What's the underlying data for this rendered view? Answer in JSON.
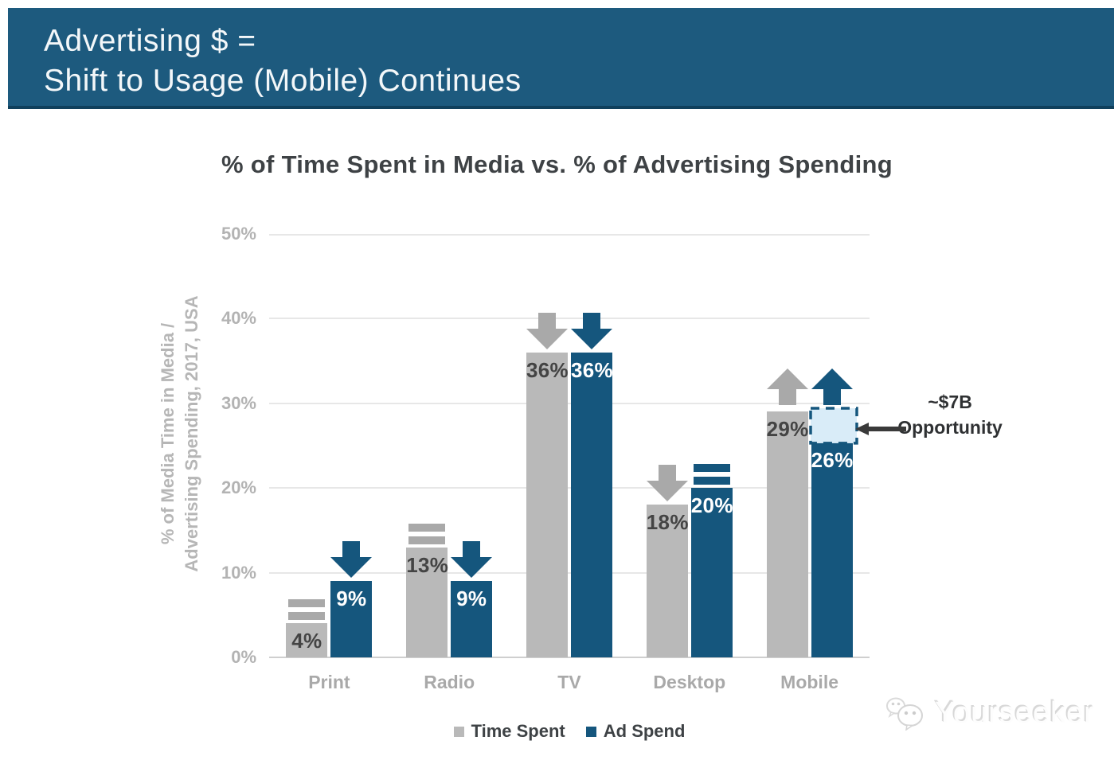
{
  "header": {
    "line1": "Advertising $ =",
    "line2": "Shift to Usage (Mobile) Continues",
    "bg_color": "#1d5a7e"
  },
  "chart_data": {
    "type": "bar",
    "title": "% of Time Spent in Media vs. % of Advertising Spending",
    "ylabel": "% of Media Time in Media / Advertising Spending, 2017, USA",
    "ylabel_lines": [
      "% of Media Time in Media /",
      "Advertising Spending, 2017, USA"
    ],
    "categories": [
      "Print",
      "Radio",
      "TV",
      "Desktop",
      "Mobile"
    ],
    "series": [
      {
        "name": "Time Spent",
        "color": "#b9b9b9",
        "trend_color": "#a9a9a9",
        "values": [
          4,
          13,
          36,
          18,
          29
        ],
        "trends": [
          "flat",
          "flat",
          "down",
          "down",
          "up"
        ]
      },
      {
        "name": "Ad Spend",
        "color": "#15567d",
        "trend_color": "#15567d",
        "values": [
          9,
          9,
          36,
          20,
          26
        ],
        "trends": [
          "down",
          "down",
          "down",
          "flat",
          "up"
        ]
      }
    ],
    "value_suffix": "%",
    "yticks": [
      "0%",
      "10%",
      "20%",
      "30%",
      "40%",
      "50%"
    ],
    "ytick_values": [
      0,
      10,
      20,
      30,
      40,
      50
    ],
    "ylim": [
      0,
      50
    ],
    "grid": true,
    "legend_position": "bottom",
    "annotation": {
      "line1": "~$7B",
      "line2": "Opportunity",
      "category": "Mobile",
      "series": "Ad Spend",
      "range": [
        26,
        29
      ],
      "box_fill": "#d9ecf8",
      "box_border": "#15567d",
      "arrow_color": "#3a3a3a"
    }
  },
  "watermark": {
    "text": "Yourseeker"
  }
}
